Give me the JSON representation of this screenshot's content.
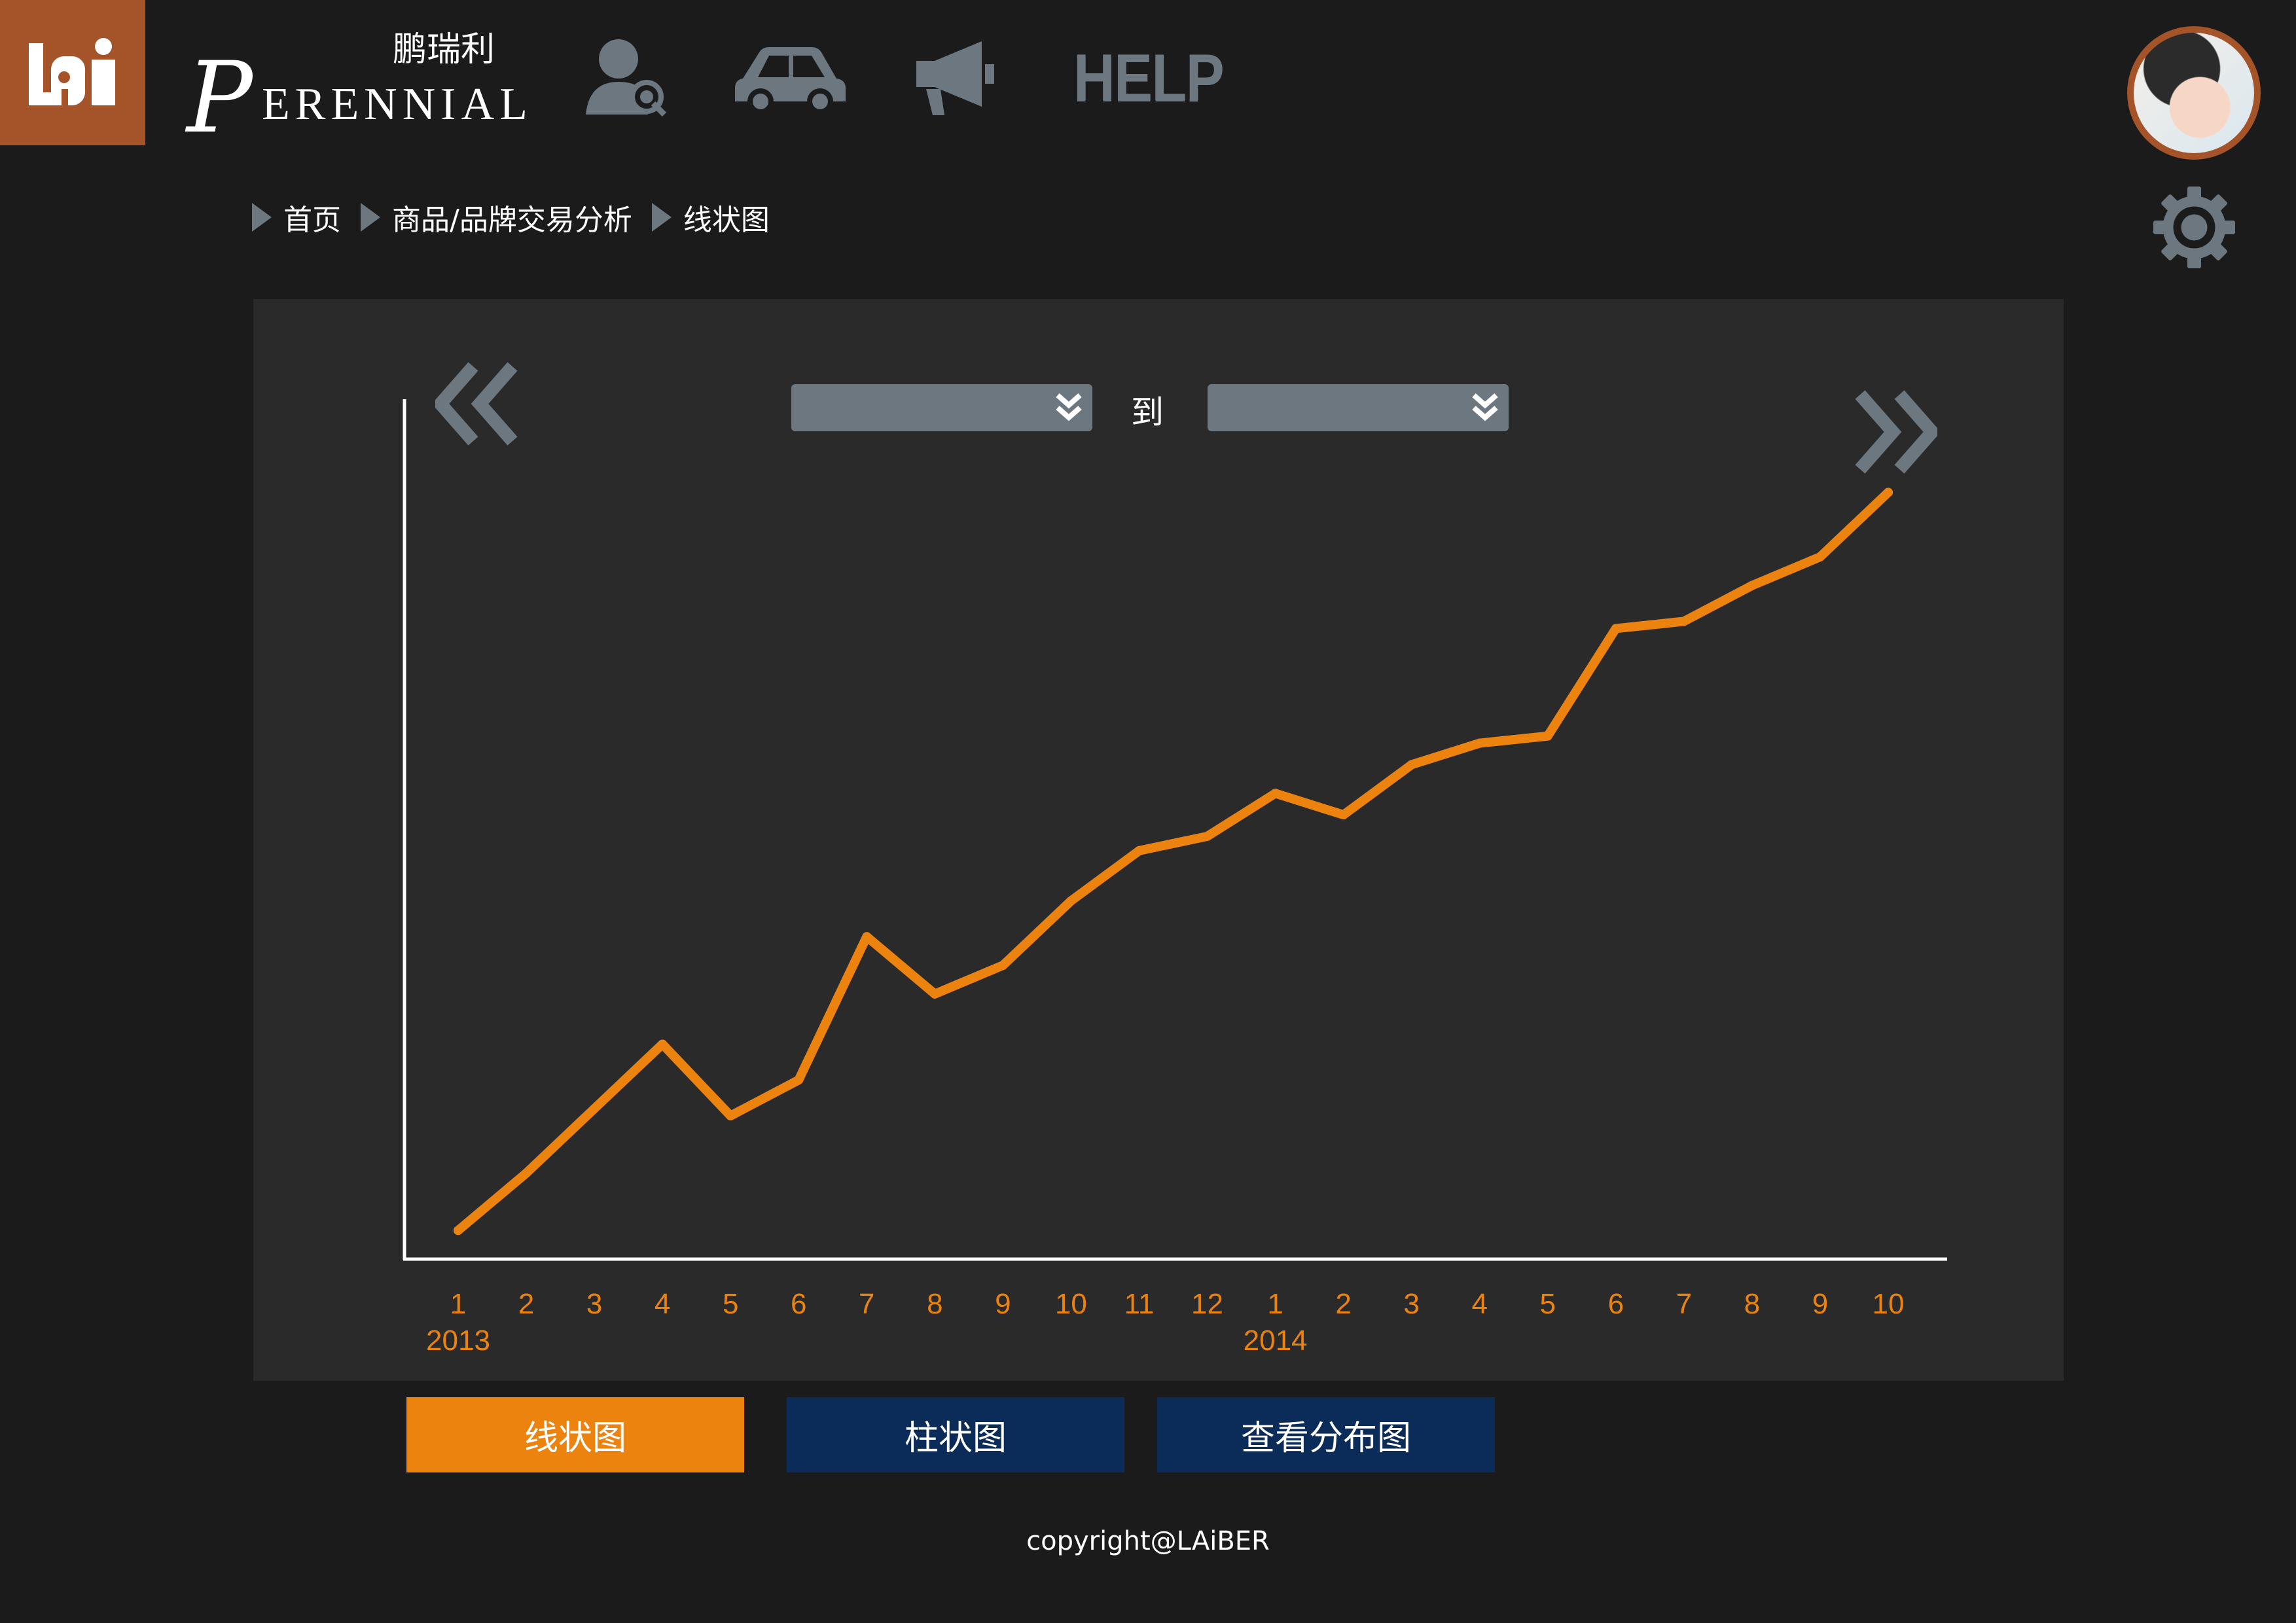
{
  "header": {
    "brand_script": "P",
    "brand_rest": "ERENNIAL",
    "brand_cn": "鹏瑞利",
    "help_label": "HELP"
  },
  "breadcrumb": [
    {
      "label": "首页"
    },
    {
      "label": "商品/品牌交易分析"
    },
    {
      "label": "线状图"
    }
  ],
  "date_range": {
    "from_value": "",
    "to_label": "到",
    "to_value": ""
  },
  "buttons": {
    "line": "线状图",
    "bar": "柱状图",
    "distribution": "查看分布图"
  },
  "footer": {
    "copyright": "copyright@LAiBER"
  },
  "colors": {
    "accent": "#ec830f",
    "brand_brown": "#a5542a",
    "navy": "#0b2b58",
    "icon_gray": "#6c7780"
  },
  "chart_data": {
    "type": "line",
    "title": "",
    "xlabel": "",
    "ylabel": "",
    "grid": false,
    "x": [
      "1",
      "2",
      "3",
      "4",
      "5",
      "6",
      "7",
      "8",
      "9",
      "10",
      "11",
      "12",
      "1",
      "2",
      "3",
      "4",
      "5",
      "6",
      "7",
      "8",
      "9",
      "10"
    ],
    "years": [
      {
        "label": "2013",
        "start_index": 0
      },
      {
        "label": "2014",
        "start_index": 12
      }
    ],
    "series": [
      {
        "name": "",
        "color": "#ec830f",
        "values": [
          4,
          12,
          21,
          30,
          20,
          25,
          45,
          37,
          41,
          50,
          57,
          59,
          65,
          62,
          69,
          72,
          73,
          88,
          89,
          94,
          98,
          107
        ]
      }
    ],
    "ylim": [
      0,
      120
    ]
  }
}
